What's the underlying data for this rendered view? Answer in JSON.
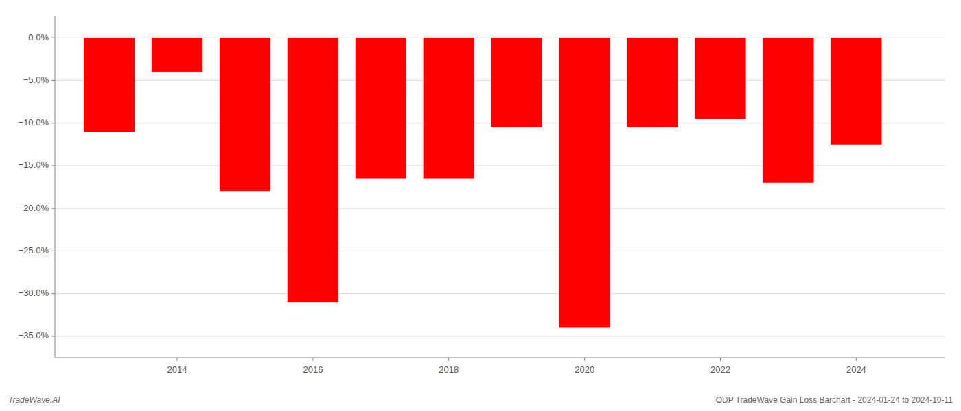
{
  "chart_data": {
    "type": "bar",
    "x": [
      2013,
      2014,
      2015,
      2016,
      2017,
      2018,
      2019,
      2020,
      2021,
      2022,
      2023,
      2024
    ],
    "values": [
      -11.0,
      -4.0,
      -18.0,
      -31.0,
      -16.5,
      -16.5,
      -10.5,
      -34.0,
      -10.5,
      -9.5,
      -17.0,
      -12.5
    ],
    "color": "#ff0000",
    "xlim": [
      2012.2,
      2025.3
    ],
    "xticks": [
      2014,
      2016,
      2018,
      2020,
      2022,
      2024
    ],
    "ylim": [
      -37.5,
      2.5
    ],
    "yticks": [
      {
        "value": 0,
        "label": "0.0%"
      },
      {
        "value": -5,
        "label": "−5.0%"
      },
      {
        "value": -10,
        "label": "−10.0%"
      },
      {
        "value": -15,
        "label": "−15.0%"
      },
      {
        "value": -20,
        "label": "−20.0%"
      },
      {
        "value": -25,
        "label": "−25.0%"
      },
      {
        "value": -30,
        "label": "−30.0%"
      },
      {
        "value": -35,
        "label": "−35.0%"
      }
    ],
    "grid": true,
    "annotations": [
      "TradeWave.AI",
      "ODP TradeWave Gain Loss Barchart - 2024-01-24 to 2024-10-11"
    ]
  }
}
